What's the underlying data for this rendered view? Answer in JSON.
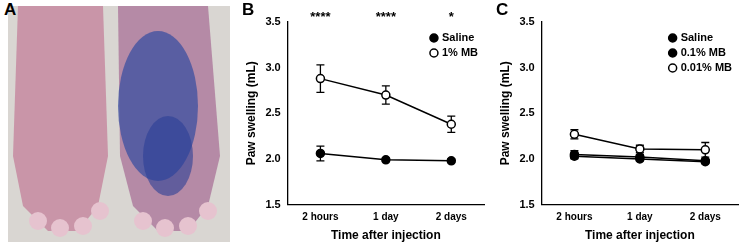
{
  "panel_a": {
    "label": "A"
  },
  "chart_data": [
    {
      "type": "line",
      "panel": "B",
      "x_label": "Time after injection",
      "y_label": "Paw swelling (mL)",
      "categories": [
        "2 hours",
        "1 day",
        "2 days"
      ],
      "ylim": [
        1.5,
        3.5
      ],
      "yticks": [
        1.5,
        {
          "value": 2,
          "label": "2.0"
        },
        2.5,
        {
          "value": 3,
          "label": "3.0"
        },
        3.5
      ],
      "grid": false,
      "legend": "upper right",
      "series": [
        {
          "name": "Saline",
          "color": "#000000",
          "marker": "circle",
          "values": [
            2.06,
            1.99,
            1.98
          ],
          "errors": [
            0.08,
            0.02,
            0.02
          ]
        },
        {
          "name": "1% MB",
          "color": "#000000",
          "marker": "open_circle",
          "values": [
            2.88,
            2.7,
            2.38
          ],
          "errors": [
            0.15,
            0.1,
            0.09
          ]
        }
      ],
      "annotations": [
        {
          "category": "2 hours",
          "text": "****"
        },
        {
          "category": "1 day",
          "text": "****"
        },
        {
          "category": "2 days",
          "text": "*"
        }
      ]
    },
    {
      "type": "line",
      "panel": "C",
      "x_label": "Time after injection",
      "y_label": "Paw swelling (mL)",
      "categories": [
        "2 hours",
        "1 day",
        "2 days"
      ],
      "ylim": [
        1.5,
        3.5
      ],
      "yticks": [
        1.5,
        {
          "value": 2,
          "label": "2.0"
        },
        2.5,
        {
          "value": 3,
          "label": "3.0"
        },
        3.5
      ],
      "grid": false,
      "legend": "upper right",
      "series": [
        {
          "name": "Saline",
          "color": "#000000",
          "marker": "circle",
          "values": [
            2.05,
            2.02,
            1.98
          ],
          "errors": [
            0.04,
            0.03,
            0.02
          ]
        },
        {
          "name": "0.1% MB",
          "color": "#000000",
          "marker": "circle",
          "values": [
            2.03,
            2.0,
            1.97
          ],
          "errors": [
            0.03,
            0.02,
            0.02
          ]
        },
        {
          "name": "0.01% MB",
          "color": "#000000",
          "marker": "open_circle",
          "values": [
            2.27,
            2.11,
            2.1
          ],
          "errors": [
            0.05,
            0.04,
            0.08
          ]
        }
      ],
      "annotations": []
    }
  ]
}
